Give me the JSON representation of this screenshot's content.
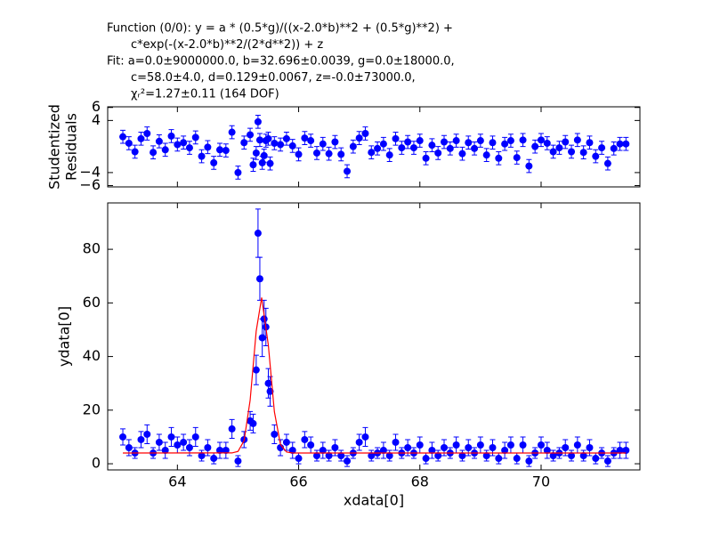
{
  "chart_data": [
    {
      "type": "scatter",
      "title_lines": [
        "Function (0/0): y = a * (0.5*g)/((x-2.0*b)**2 + (0.5*g)**2) +",
        "c*exp(-(x-2.0*b)**2/(2*d**2)) + z",
        "Fit: a=0.0±9000000.0, b=32.696±0.0039, g=0.0±18000.0,",
        "c=58.0±4.0, d=0.129±0.0067, z=-0.0±73000.0,",
        "χᵣ²=1.27±0.11 (164 DOF)"
      ],
      "ylabel": [
        "Studentized",
        "Residuals"
      ],
      "xlim": [
        62.85,
        71.63
      ],
      "ylim": [
        -6.2,
        6.1
      ],
      "xticks": [
        64,
        66,
        68,
        70
      ],
      "xtick_labels": false,
      "yticks": [
        6,
        4,
        {
          "value": -4,
          "label": "−4"
        },
        {
          "value": -6,
          "label": "−6"
        }
      ],
      "series": [
        {
          "color": "#0000ff",
          "x": [
            63.1,
            63.2,
            63.3,
            63.4,
            63.5,
            63.6,
            63.7,
            63.8,
            63.9,
            64.0,
            64.1,
            64.2,
            64.3,
            64.4,
            64.5,
            64.6,
            64.7,
            64.8,
            64.9,
            65.0,
            65.1,
            65.2,
            65.25,
            65.3,
            65.33,
            65.36,
            65.4,
            65.43,
            65.46,
            65.5,
            65.53,
            65.6,
            65.7,
            65.8,
            65.9,
            66.0,
            66.1,
            66.2,
            66.3,
            66.4,
            66.5,
            66.6,
            66.7,
            66.8,
            66.9,
            67.0,
            67.1,
            67.2,
            67.3,
            67.4,
            67.5,
            67.6,
            67.7,
            67.8,
            67.9,
            68.0,
            68.1,
            68.2,
            68.3,
            68.4,
            68.5,
            68.6,
            68.7,
            68.8,
            68.9,
            69.0,
            69.1,
            69.2,
            69.3,
            69.4,
            69.5,
            69.6,
            69.7,
            69.8,
            69.9,
            70.0,
            70.1,
            70.2,
            70.3,
            70.4,
            70.5,
            70.6,
            70.7,
            70.8,
            70.9,
            71.0,
            71.1,
            71.2,
            71.3,
            71.4
          ],
          "values": [
            1.5,
            0.5,
            -0.8,
            1.2,
            2.0,
            -0.9,
            0.8,
            -0.5,
            1.6,
            0.3,
            0.6,
            -0.2,
            1.4,
            -1.5,
            -0.1,
            -2.5,
            -0.5,
            -0.6,
            2.2,
            -4.0,
            0.6,
            1.8,
            -2.8,
            -1.0,
            3.8,
            1.0,
            -2.5,
            -1.4,
            0.9,
            1.2,
            -2.6,
            0.5,
            0.3,
            1.2,
            0.1,
            -1.2,
            1.3,
            0.9,
            -1.0,
            0.4,
            -1.1,
            0.7,
            -1.2,
            -3.8,
            0.0,
            1.3,
            2.0,
            -0.9,
            -0.3,
            0.4,
            -1.3,
            1.2,
            -0.2,
            0.7,
            -0.2,
            0.9,
            -1.8,
            0.2,
            -1.0,
            0.7,
            -0.3,
            0.9,
            -1.1,
            0.6,
            -0.3,
            0.9,
            -1.3,
            0.6,
            -1.8,
            0.4,
            0.9,
            -1.7,
            1.0,
            -3.0,
            0.0,
            1.0,
            0.5,
            -0.8,
            -0.2,
            0.7,
            -0.8,
            1.0,
            -0.9,
            0.6,
            -1.5,
            -0.2,
            -2.6,
            -0.3,
            0.4,
            0.4
          ],
          "errors": [
            1,
            1,
            1,
            1,
            1,
            1,
            1,
            1,
            1,
            1,
            1,
            1,
            1,
            1,
            1,
            1,
            1,
            1,
            1,
            1,
            1,
            1,
            1,
            1,
            1,
            1,
            1,
            1,
            1,
            1,
            1,
            1,
            1,
            1,
            1,
            1,
            1,
            1,
            1,
            1,
            1,
            1,
            1,
            1,
            1,
            1,
            1,
            1,
            1,
            1,
            1,
            1,
            1,
            1,
            1,
            1,
            1,
            1,
            1,
            1,
            1,
            1,
            1,
            1,
            1,
            1,
            1,
            1,
            1,
            1,
            1,
            1,
            1,
            1,
            1,
            1,
            1,
            1,
            1,
            1,
            1,
            1,
            1,
            1,
            1,
            1,
            1,
            1,
            1,
            1
          ]
        }
      ]
    },
    {
      "type": "scatter",
      "xlabel": "xdata[0]",
      "ylabel": [
        "ydata[0]"
      ],
      "xlim": [
        62.85,
        71.63
      ],
      "ylim": [
        -2.3,
        97.3
      ],
      "xticks": [
        64,
        66,
        68,
        70
      ],
      "xtick_labels": true,
      "yticks": [
        0,
        20,
        40,
        60,
        80
      ],
      "series": [
        {
          "color": "#0000ff",
          "x": [
            63.1,
            63.2,
            63.3,
            63.4,
            63.5,
            63.6,
            63.7,
            63.8,
            63.9,
            64.0,
            64.1,
            64.2,
            64.3,
            64.4,
            64.5,
            64.6,
            64.7,
            64.8,
            64.9,
            65.0,
            65.1,
            65.2,
            65.25,
            65.3,
            65.33,
            65.36,
            65.4,
            65.43,
            65.46,
            65.5,
            65.53,
            65.6,
            65.7,
            65.8,
            65.9,
            66.0,
            66.1,
            66.2,
            66.3,
            66.4,
            66.5,
            66.6,
            66.7,
            66.8,
            66.9,
            67.0,
            67.1,
            67.2,
            67.3,
            67.4,
            67.5,
            67.6,
            67.7,
            67.8,
            67.9,
            68.0,
            68.1,
            68.2,
            68.3,
            68.4,
            68.5,
            68.6,
            68.7,
            68.8,
            68.9,
            69.0,
            69.1,
            69.2,
            69.3,
            69.4,
            69.5,
            69.6,
            69.7,
            69.8,
            69.9,
            70.0,
            70.1,
            70.2,
            70.3,
            70.4,
            70.5,
            70.6,
            70.7,
            70.8,
            70.9,
            71.0,
            71.1,
            71.2,
            71.3,
            71.4
          ],
          "values": [
            10,
            6,
            4,
            9,
            11,
            4,
            8,
            5,
            10,
            7,
            8,
            6,
            10,
            3,
            6,
            2,
            5,
            5,
            13,
            1,
            9,
            16,
            15,
            35,
            86,
            69,
            47,
            54,
            51,
            30,
            27,
            11,
            6,
            8,
            5,
            2,
            9,
            7,
            3,
            5,
            3,
            6,
            3,
            1,
            4,
            8,
            10,
            3,
            4,
            5,
            3,
            8,
            4,
            6,
            4,
            7,
            2,
            5,
            3,
            6,
            4,
            7,
            3,
            6,
            4,
            7,
            3,
            6,
            2,
            5,
            7,
            2,
            7,
            1,
            4,
            7,
            5,
            3,
            4,
            6,
            3,
            7,
            3,
            6,
            2,
            4,
            1,
            4,
            5,
            5
          ],
          "errors": [
            3,
            3,
            2,
            3,
            3.5,
            2,
            3,
            3,
            3.5,
            3,
            3,
            3,
            3.5,
            2,
            3,
            2,
            3,
            3,
            3.5,
            2,
            3,
            3.5,
            3.5,
            5.5,
            9,
            8,
            7,
            7,
            7,
            5.5,
            5.5,
            3.5,
            3,
            3,
            3,
            2,
            3,
            3,
            2,
            3,
            2,
            3,
            2,
            2,
            2,
            3,
            3.5,
            2,
            2,
            3,
            2,
            3,
            2,
            3,
            2,
            3,
            2,
            3,
            2,
            3,
            2,
            3,
            2,
            3,
            2,
            3,
            2,
            3,
            2,
            3,
            3,
            2,
            3,
            2,
            2,
            3,
            3,
            2,
            2,
            3,
            2,
            3,
            2,
            3,
            2,
            2,
            2,
            2,
            3,
            3
          ]
        },
        {
          "color": "#ff0000",
          "style": "line",
          "x": [
            63.1,
            64.9,
            65.0,
            65.1,
            65.2,
            65.3,
            65.39,
            65.5,
            65.6,
            65.7,
            65.8,
            65.9,
            71.4
          ],
          "values": [
            4,
            4.04,
            4.6,
            8.6,
            23.7,
            49.5,
            62,
            44.3,
            19.4,
            7.2,
            4.4,
            4,
            4
          ]
        }
      ]
    }
  ]
}
